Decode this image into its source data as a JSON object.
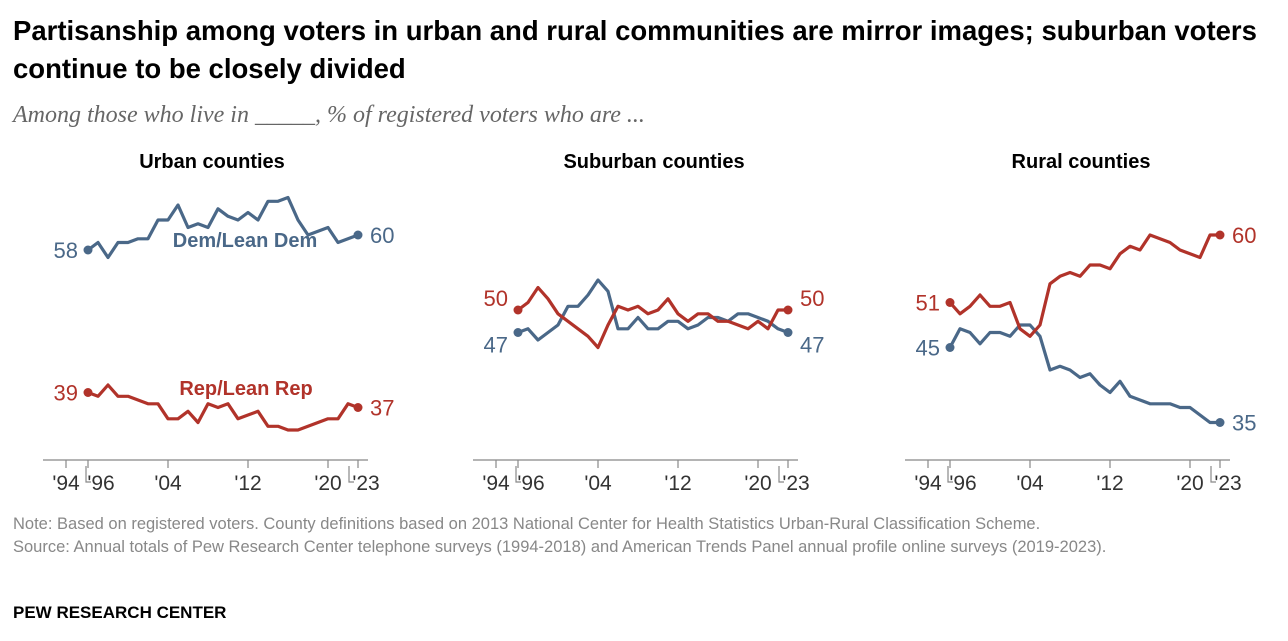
{
  "title": "Partisanship among voters in urban and rural communities are mirror images; suburban voters continue to be closely divided",
  "subtitle": "Among those who live in _____, % of registered voters who are ...",
  "note": "Note: Based on registered voters. County definitions based on 2013 National Center for Health Statistics Urban-Rural Classification Scheme.",
  "source": "Source: Annual totals of Pew Research Center telephone surveys (1994-2018) and American Trends Panel annual profile online surveys (2019-2023).",
  "brand": "PEW RESEARCH CENTER",
  "colors": {
    "dem": "#4a6888",
    "rep": "#b1332a",
    "axis": "#888888"
  },
  "chart_data": [
    {
      "type": "line",
      "title": "Urban counties",
      "x_ticks": [
        "'94",
        "'96",
        "'04",
        "'12",
        "'20",
        "'23"
      ],
      "x": [
        1996,
        1997,
        1998,
        1999,
        2000,
        2001,
        2002,
        2003,
        2004,
        2005,
        2006,
        2007,
        2008,
        2009,
        2010,
        2011,
        2012,
        2013,
        2014,
        2015,
        2016,
        2017,
        2018,
        2019,
        2020,
        2021,
        2022,
        2023
      ],
      "series": [
        {
          "name": "Dem/Lean Dem",
          "key": "dem",
          "label_visible": true,
          "start_label": "58",
          "end_label": "60",
          "values": [
            58,
            59,
            57,
            59,
            59,
            59.5,
            59.5,
            62,
            62,
            64,
            61,
            61.5,
            61,
            63.5,
            62.5,
            62,
            63,
            62,
            64.5,
            64.5,
            65,
            62,
            60,
            60.5,
            61,
            59,
            59.5,
            60
          ]
        },
        {
          "name": "Rep/Lean Rep",
          "key": "rep",
          "label_visible": true,
          "start_label": "39",
          "end_label": "37",
          "values": [
            39,
            38.5,
            40,
            38.5,
            38.5,
            38,
            37.5,
            37.5,
            35.5,
            35.5,
            36.5,
            35,
            37.5,
            37,
            37.5,
            35.5,
            36,
            36.5,
            34.5,
            34.5,
            34,
            34,
            34.5,
            35,
            35.5,
            35.5,
            37.5,
            37
          ]
        }
      ]
    },
    {
      "type": "line",
      "title": "Suburban counties",
      "x_ticks": [
        "'94",
        "'96",
        "'04",
        "'12",
        "'20",
        "'23"
      ],
      "x": [
        1996,
        1997,
        1998,
        1999,
        2000,
        2001,
        2002,
        2003,
        2004,
        2005,
        2006,
        2007,
        2008,
        2009,
        2010,
        2011,
        2012,
        2013,
        2014,
        2015,
        2016,
        2017,
        2018,
        2019,
        2020,
        2021,
        2022,
        2023
      ],
      "series": [
        {
          "name": "Dem/Lean Dem",
          "key": "dem",
          "label_visible": false,
          "start_label": "47",
          "end_label": "47",
          "values": [
            47,
            47.5,
            46,
            47,
            48,
            50.5,
            50.5,
            52,
            54,
            52.5,
            47.5,
            47.5,
            49,
            47.5,
            47.5,
            48.5,
            48.5,
            47.5,
            48,
            49,
            49,
            48.5,
            49.5,
            49.5,
            49,
            48.5,
            47.5,
            47
          ]
        },
        {
          "name": "Rep/Lean Rep",
          "key": "rep",
          "label_visible": false,
          "start_label": "50",
          "end_label": "50",
          "values": [
            50,
            51,
            53,
            51.5,
            49.5,
            48.5,
            47.5,
            46.5,
            45,
            48,
            50.5,
            50,
            50.5,
            49.5,
            50,
            51.5,
            49.5,
            48.5,
            49.5,
            49.5,
            48.5,
            48.5,
            48,
            47.5,
            48.5,
            47.5,
            50,
            50
          ]
        }
      ]
    },
    {
      "type": "line",
      "title": "Rural counties",
      "x_ticks": [
        "'94",
        "'96",
        "'04",
        "'12",
        "'20",
        "'23"
      ],
      "x": [
        1996,
        1997,
        1998,
        1999,
        2000,
        2001,
        2002,
        2003,
        2004,
        2005,
        2006,
        2007,
        2008,
        2009,
        2010,
        2011,
        2012,
        2013,
        2014,
        2015,
        2016,
        2017,
        2018,
        2019,
        2020,
        2021,
        2022,
        2023
      ],
      "series": [
        {
          "name": "Dem/Lean Dem",
          "key": "dem",
          "label_visible": false,
          "start_label": "45",
          "end_label": "35",
          "values": [
            45,
            47.5,
            47,
            45.5,
            47,
            47,
            46.5,
            48,
            48,
            46.5,
            42,
            42.5,
            42,
            41,
            41.5,
            40,
            39,
            40.5,
            38.5,
            38,
            37.5,
            37.5,
            37.5,
            37,
            37,
            36,
            35,
            35
          ]
        },
        {
          "name": "Rep/Lean Rep",
          "key": "rep",
          "label_visible": false,
          "start_label": "51",
          "end_label": "60",
          "values": [
            51,
            49.5,
            50.5,
            52,
            50.5,
            50.5,
            51,
            47.5,
            46.5,
            48,
            53.5,
            54.5,
            55,
            54.5,
            56,
            56,
            55.5,
            57.5,
            58.5,
            58,
            60,
            59.5,
            59,
            58,
            57.5,
            57,
            60,
            60
          ]
        }
      ]
    }
  ]
}
